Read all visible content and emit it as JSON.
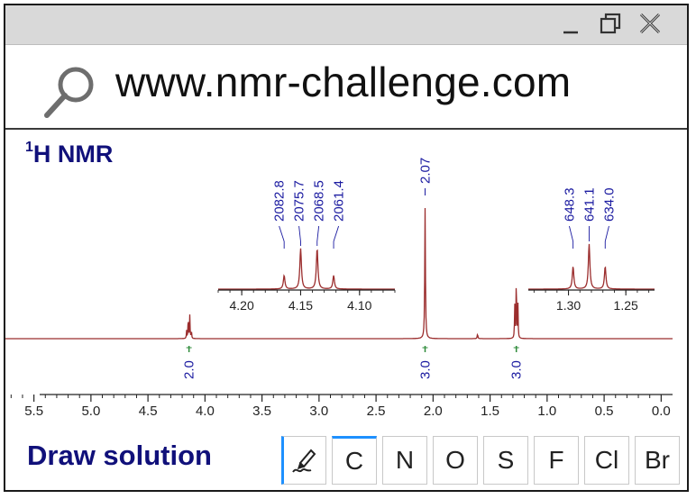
{
  "window": {
    "controls": [
      {
        "name": "minimize-button",
        "icon": "minimize-icon"
      },
      {
        "name": "restore-button",
        "icon": "restore-icon"
      },
      {
        "name": "close-button",
        "icon": "close-icon"
      }
    ]
  },
  "address_bar": {
    "icon": "search-icon",
    "url": "www.nmr-challenge.com"
  },
  "spectrum": {
    "title_sup": "1",
    "title_main": "H NMR",
    "colors": {
      "trace": "#9b2d2d",
      "peak_label": "#1a1aa0",
      "integral": "#2e8b3a",
      "axis": "#222222"
    },
    "main_axis": {
      "range_ppm": [
        5.75,
        -0.1
      ],
      "ticks": [
        "5.5",
        "5.0",
        "4.5",
        "4.0",
        "3.5",
        "3.0",
        "2.5",
        "2.0",
        "1.5",
        "1.0",
        "0.5",
        "0.0"
      ]
    },
    "peaks": [
      {
        "ppm": 4.14,
        "height": 0.2,
        "multiplet": "quartet"
      },
      {
        "ppm": 2.07,
        "height": 1.0,
        "multiplet": "singlet"
      },
      {
        "ppm": 1.61,
        "height": 0.035,
        "multiplet": "singlet"
      },
      {
        "ppm": 1.27,
        "height": 0.52,
        "multiplet": "triplet"
      }
    ],
    "peak_labels": [
      {
        "text": "2.07",
        "ppm": 2.07
      }
    ],
    "integrals": [
      {
        "text": "2.0",
        "ppm": 4.14
      },
      {
        "text": "3.0",
        "ppm": 2.07
      },
      {
        "text": "3.0",
        "ppm": 1.27
      }
    ],
    "insets": [
      {
        "name": "inset-quartet",
        "range_ppm": [
          4.22,
          4.07
        ],
        "ticks": [
          "4.20",
          "4.15",
          "4.10"
        ],
        "peaks": [
          {
            "ppm": 4.164,
            "height": 0.3
          },
          {
            "ppm": 4.15,
            "height": 0.9
          },
          {
            "ppm": 4.136,
            "height": 0.9
          },
          {
            "ppm": 4.122,
            "height": 0.3
          }
        ],
        "labels": [
          "2082.8",
          "2075.7",
          "2068.5",
          "2061.4"
        ]
      },
      {
        "name": "inset-triplet",
        "range_ppm": [
          1.335,
          1.225
        ],
        "ticks": [
          "1.30",
          "1.25"
        ],
        "peaks": [
          {
            "ppm": 1.296,
            "height": 0.5
          },
          {
            "ppm": 1.282,
            "height": 1.0
          },
          {
            "ppm": 1.268,
            "height": 0.5
          }
        ],
        "labels": [
          "648.3",
          "641.1",
          "634.0"
        ]
      }
    ]
  },
  "draw": {
    "label": "Draw solution",
    "tools": [
      {
        "name": "pencil-tool",
        "icon": "pencil-icon",
        "label": ""
      },
      {
        "name": "element-c-button",
        "label": "C"
      },
      {
        "name": "element-n-button",
        "label": "N"
      },
      {
        "name": "element-o-button",
        "label": "O"
      },
      {
        "name": "element-s-button",
        "label": "S"
      },
      {
        "name": "element-f-button",
        "label": "F"
      },
      {
        "name": "element-cl-button",
        "label": "Cl"
      },
      {
        "name": "element-br-button",
        "label": "Br"
      }
    ]
  }
}
